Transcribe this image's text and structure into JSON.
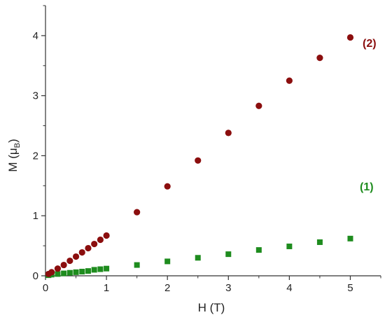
{
  "chart_data": {
    "type": "scatter",
    "title": "",
    "xlabel": "H (T)",
    "ylabel": {
      "prefix": "M (",
      "mu": "μ",
      "sub": "B",
      "suffix": ")"
    },
    "xlim": [
      0,
      5.5
    ],
    "ylim": [
      0,
      4.5
    ],
    "x_ticks": [
      0,
      1,
      2,
      3,
      4,
      5
    ],
    "y_ticks": [
      0,
      1,
      2,
      3,
      4
    ],
    "x_tick_labels": [
      "0",
      "1",
      "2",
      "3",
      "4",
      "5"
    ],
    "y_tick_labels": [
      "0",
      "1",
      "2",
      "3",
      "4"
    ],
    "grid": false,
    "series": [
      {
        "name": "(1)",
        "marker": "square",
        "color": "#1e8c1e",
        "x": [
          0.05,
          0.1,
          0.2,
          0.3,
          0.4,
          0.5,
          0.6,
          0.7,
          0.8,
          0.9,
          1.0,
          1.5,
          2.0,
          2.5,
          3.0,
          3.5,
          4.0,
          4.5,
          5.0
        ],
        "y": [
          0.01,
          0.02,
          0.03,
          0.04,
          0.05,
          0.06,
          0.07,
          0.08,
          0.1,
          0.11,
          0.12,
          0.18,
          0.24,
          0.3,
          0.36,
          0.43,
          0.49,
          0.56,
          0.62
        ]
      },
      {
        "name": "(2)",
        "marker": "circle",
        "color": "#8b0e0e",
        "x": [
          0.05,
          0.1,
          0.2,
          0.3,
          0.4,
          0.5,
          0.6,
          0.7,
          0.8,
          0.9,
          1.0,
          1.5,
          2.0,
          2.5,
          3.0,
          3.5,
          4.0,
          4.5,
          5.0
        ],
        "y": [
          0.03,
          0.06,
          0.12,
          0.18,
          0.25,
          0.32,
          0.39,
          0.46,
          0.53,
          0.6,
          0.67,
          1.06,
          1.49,
          1.92,
          2.38,
          2.83,
          3.25,
          3.63,
          3.97
        ]
      }
    ],
    "series_labels_text": {
      "s1": "(1)",
      "s2": "(2)"
    }
  }
}
